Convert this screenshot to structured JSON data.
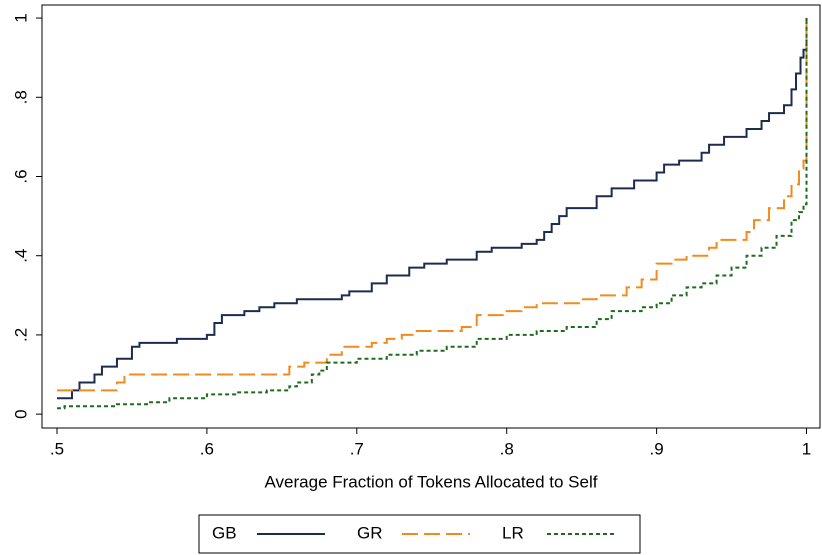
{
  "chart_data": {
    "type": "line",
    "step": true,
    "x_label": "Average Fraction of Tokens Allocated to Self",
    "xlim": [
      0.49,
      1.009
    ],
    "ylim": [
      -0.035,
      1.033
    ],
    "xticks": [
      {
        "value": 0.5,
        "label": ".5"
      },
      {
        "value": 0.6,
        "label": ".6"
      },
      {
        "value": 0.7,
        "label": ".7"
      },
      {
        "value": 0.8,
        "label": ".8"
      },
      {
        "value": 0.9,
        "label": ".9"
      },
      1
    ],
    "yticks": [
      0,
      {
        "value": 0.2,
        "label": ".2"
      },
      {
        "value": 0.4,
        "label": ".4"
      },
      {
        "value": 0.6,
        "label": ".6"
      },
      {
        "value": 0.8,
        "label": ".8"
      },
      1
    ],
    "legend": "bottom",
    "series": [
      {
        "name": "GB",
        "color": "#1c2b4e",
        "style": "solid",
        "x": [
          0.5,
          0.51,
          0.515,
          0.525,
          0.53,
          0.54,
          0.55,
          0.555,
          0.58,
          0.6,
          0.605,
          0.61,
          0.625,
          0.635,
          0.645,
          0.66,
          0.69,
          0.695,
          0.71,
          0.72,
          0.735,
          0.745,
          0.76,
          0.78,
          0.79,
          0.81,
          0.82,
          0.825,
          0.83,
          0.835,
          0.84,
          0.86,
          0.87,
          0.885,
          0.9,
          0.905,
          0.915,
          0.93,
          0.935,
          0.945,
          0.96,
          0.97,
          0.975,
          0.985,
          0.99,
          0.993,
          0.996,
          0.998,
          1.0
        ],
        "values": [
          0.04,
          0.06,
          0.08,
          0.1,
          0.12,
          0.14,
          0.17,
          0.18,
          0.19,
          0.2,
          0.23,
          0.25,
          0.26,
          0.27,
          0.28,
          0.29,
          0.3,
          0.31,
          0.33,
          0.35,
          0.37,
          0.38,
          0.39,
          0.41,
          0.42,
          0.43,
          0.44,
          0.46,
          0.48,
          0.5,
          0.52,
          0.55,
          0.57,
          0.59,
          0.61,
          0.63,
          0.64,
          0.66,
          0.68,
          0.7,
          0.72,
          0.74,
          0.76,
          0.78,
          0.82,
          0.86,
          0.9,
          0.92,
          1.0
        ]
      },
      {
        "name": "GR",
        "color": "#f28b1d",
        "style": "dashed",
        "x": [
          0.5,
          0.54,
          0.545,
          0.655,
          0.665,
          0.68,
          0.69,
          0.71,
          0.72,
          0.73,
          0.74,
          0.77,
          0.78,
          0.8,
          0.81,
          0.82,
          0.85,
          0.86,
          0.88,
          0.89,
          0.9,
          0.91,
          0.92,
          0.935,
          0.94,
          0.96,
          0.965,
          0.975,
          0.985,
          0.99,
          0.995,
          0.998,
          1.0
        ],
        "values": [
          0.06,
          0.08,
          0.1,
          0.12,
          0.13,
          0.15,
          0.17,
          0.18,
          0.19,
          0.2,
          0.21,
          0.22,
          0.25,
          0.26,
          0.27,
          0.28,
          0.29,
          0.3,
          0.32,
          0.34,
          0.38,
          0.39,
          0.4,
          0.42,
          0.44,
          0.46,
          0.49,
          0.52,
          0.55,
          0.58,
          0.62,
          0.64,
          1.0
        ]
      },
      {
        "name": "LR",
        "color": "#1e6b1e",
        "style": "dotted",
        "x": [
          0.5,
          0.505,
          0.54,
          0.56,
          0.575,
          0.6,
          0.62,
          0.64,
          0.655,
          0.66,
          0.67,
          0.675,
          0.68,
          0.7,
          0.72,
          0.74,
          0.76,
          0.78,
          0.8,
          0.82,
          0.84,
          0.86,
          0.87,
          0.89,
          0.9,
          0.91,
          0.92,
          0.93,
          0.94,
          0.95,
          0.96,
          0.97,
          0.98,
          0.99,
          0.995,
          0.998,
          1.0
        ],
        "values": [
          0.015,
          0.02,
          0.025,
          0.03,
          0.04,
          0.05,
          0.055,
          0.06,
          0.07,
          0.08,
          0.1,
          0.11,
          0.13,
          0.14,
          0.15,
          0.16,
          0.17,
          0.19,
          0.2,
          0.21,
          0.22,
          0.24,
          0.26,
          0.27,
          0.28,
          0.3,
          0.32,
          0.33,
          0.35,
          0.37,
          0.4,
          0.42,
          0.45,
          0.49,
          0.51,
          0.53,
          1.0
        ]
      }
    ]
  }
}
